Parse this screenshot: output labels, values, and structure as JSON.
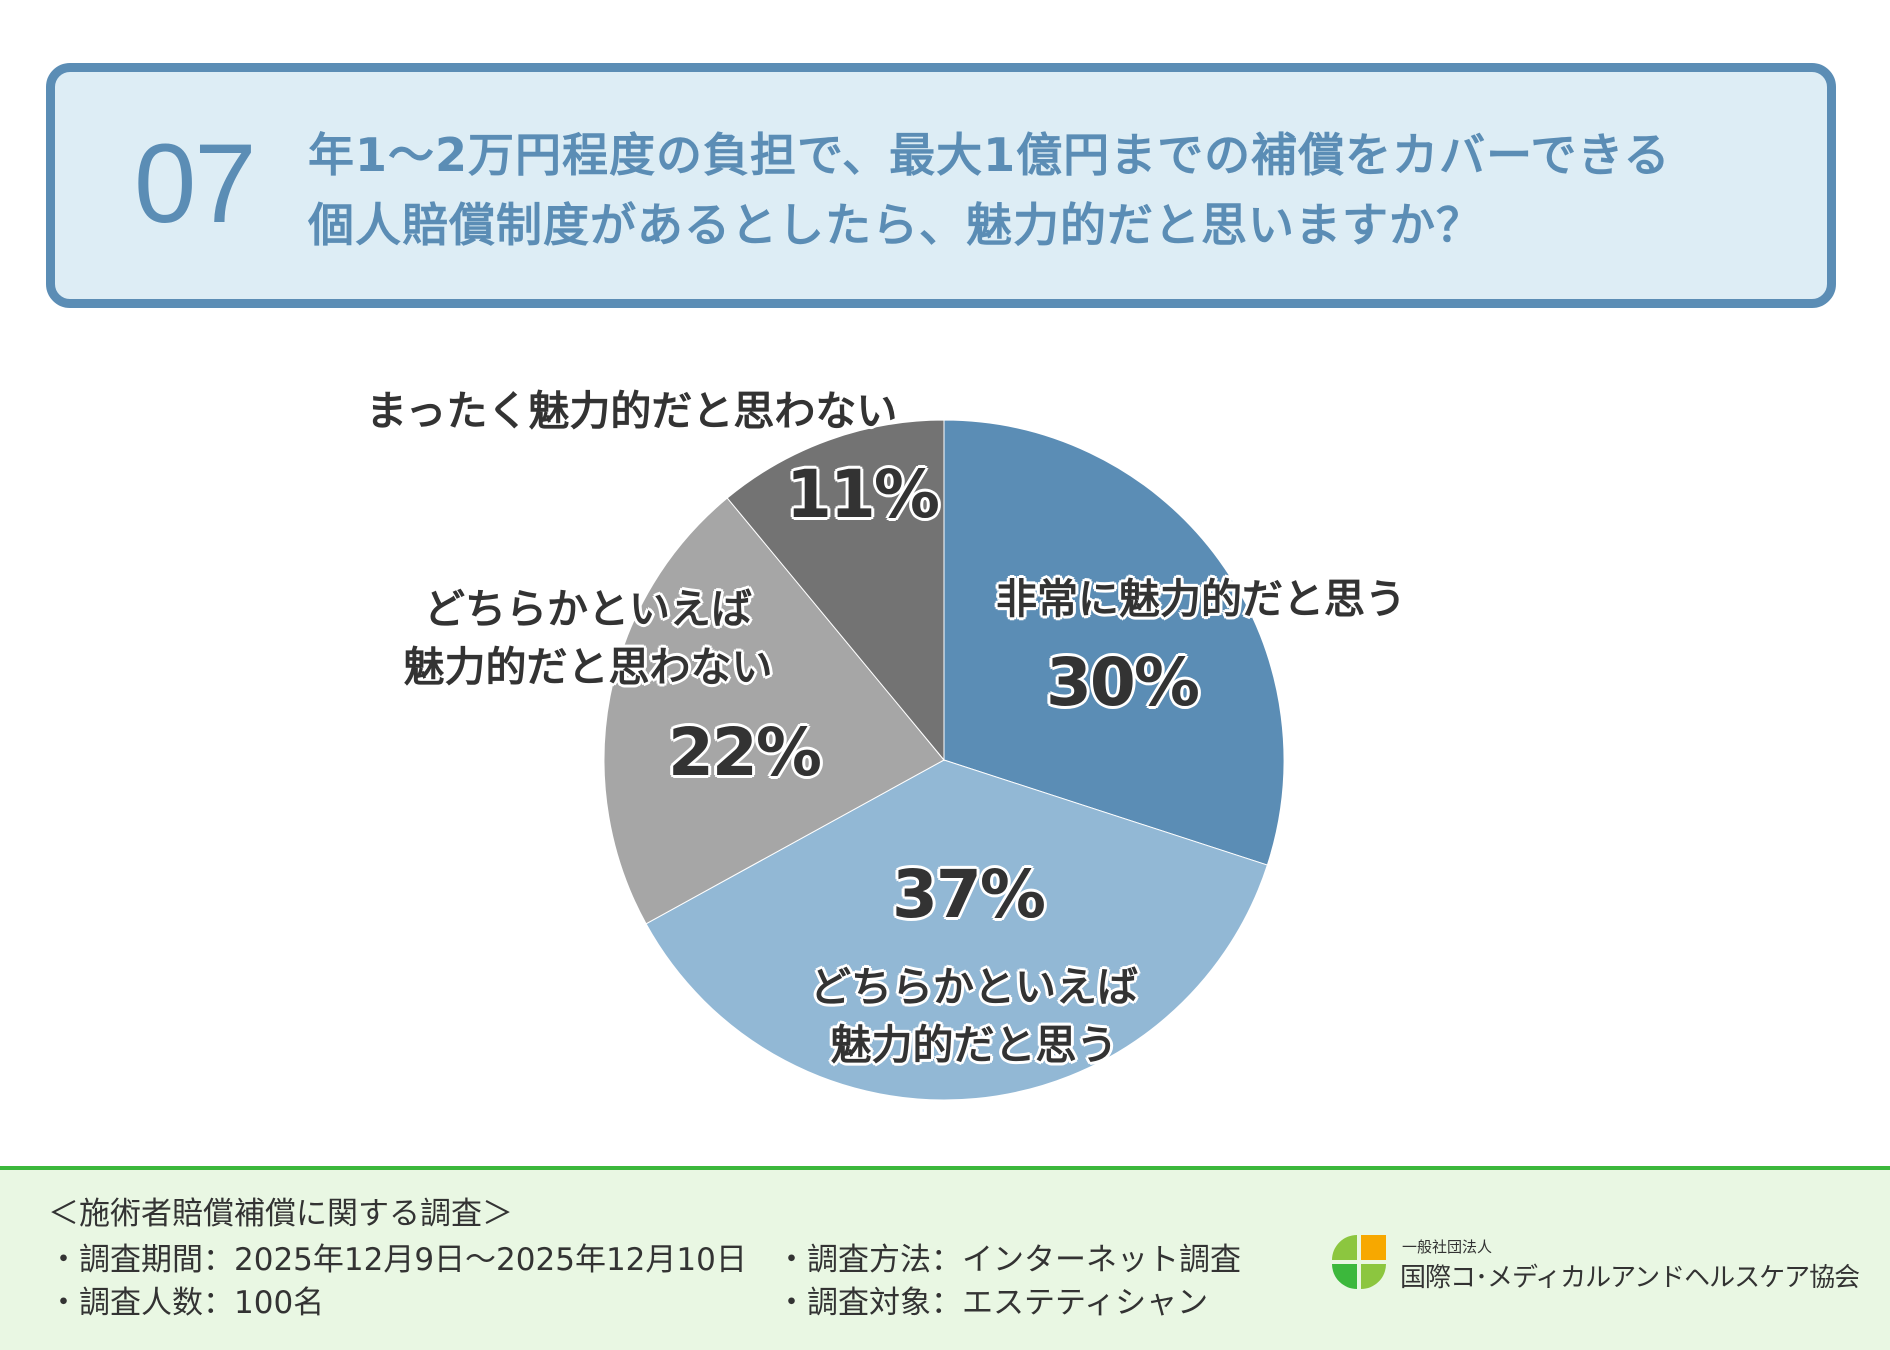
{
  "question": {
    "number": "07",
    "line1": "年1〜2万円程度の負担で、最大1億円までの補償をカバーできる",
    "line2": "個人賠償制度があるとしたら、魅力的だと思いますか？"
  },
  "chart_data": {
    "type": "pie",
    "start_angle_deg": 0,
    "direction": "clockwise",
    "slices": [
      {
        "label": "非常に魅力的だと思う",
        "label_lines": [
          "非常に魅力的だと思う"
        ],
        "value": 30,
        "value_label": "30%",
        "color": "#5b8db5"
      },
      {
        "label": "どちらかといえば魅力的だと思う",
        "label_lines": [
          "どちらかといえば",
          "魅力的だと思う"
        ],
        "value": 37,
        "value_label": "37%",
        "color": "#92b8d5"
      },
      {
        "label": "どちらかといえば魅力的だと思わない",
        "label_lines": [
          "どちらかといえば",
          "魅力的だと思わない"
        ],
        "value": 22,
        "value_label": "22%",
        "color": "#a6a6a6"
      },
      {
        "label": "まったく魅力的だと思わない",
        "label_lines": [
          "まったく魅力的だと思わない"
        ],
        "value": 11,
        "value_label": "11%",
        "color": "#737373"
      }
    ]
  },
  "footer": {
    "survey_title": "＜施術者賠償補償に関する調査＞",
    "period": "・調査期間：2025年12月9日〜2025年12月10日",
    "respondents": "・調査人数：100名",
    "method": "・調査方法：インターネット調査",
    "target": "・調査対象：エステティシャン",
    "org_type": "一般社団法人",
    "org_name": "国際コ･メディカルアンドヘルスケア協会"
  },
  "colors": {
    "header_border": "#5b8db5",
    "header_bg": "#ddedf5",
    "footer_bg": "#e9f7e3",
    "footer_border": "#3cb83c"
  }
}
